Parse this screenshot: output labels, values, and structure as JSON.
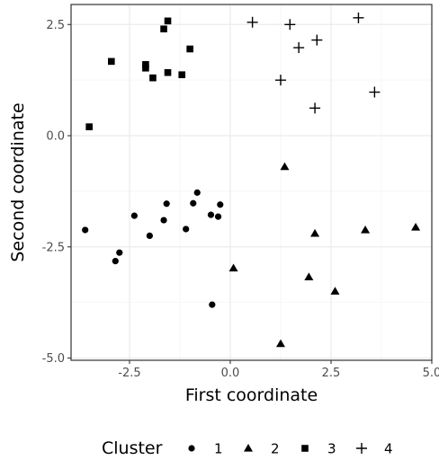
{
  "chart_data": {
    "type": "scatter",
    "xlabel": "First coordinate",
    "ylabel": "Second coordinate",
    "xlim": [
      -3.95,
      5.0
    ],
    "ylim": [
      -5.05,
      2.95
    ],
    "x_ticks": [
      -2.5,
      0.0,
      2.5,
      5.0
    ],
    "x_tick_labels": [
      "-2.5",
      "0.0",
      "2.5",
      "5.0"
    ],
    "y_ticks": [
      2.5,
      0.0,
      -2.5,
      -5.0
    ],
    "y_tick_labels": [
      "2.5",
      "0.0",
      "-2.5",
      "-5.0"
    ],
    "grid": true,
    "legend_position": "bottom",
    "legend_title": "Cluster",
    "series": [
      {
        "name": "1",
        "marker": "circle",
        "points": [
          [
            -3.6,
            -2.12
          ],
          [
            -2.85,
            -2.82
          ],
          [
            -2.75,
            -2.63
          ],
          [
            -2.38,
            -1.8
          ],
          [
            -2.0,
            -2.25
          ],
          [
            -1.65,
            -1.9
          ],
          [
            -1.58,
            -1.53
          ],
          [
            -1.1,
            -2.1
          ],
          [
            -0.92,
            -1.52
          ],
          [
            -0.82,
            -1.28
          ],
          [
            -0.48,
            -1.78
          ],
          [
            -0.3,
            -1.82
          ],
          [
            -0.25,
            -1.55
          ],
          [
            -0.45,
            -3.8
          ]
        ]
      },
      {
        "name": "2",
        "marker": "triangle",
        "points": [
          [
            1.35,
            -0.7
          ],
          [
            0.08,
            -2.98
          ],
          [
            2.1,
            -2.2
          ],
          [
            3.35,
            -2.12
          ],
          [
            4.6,
            -2.06
          ],
          [
            1.95,
            -3.18
          ],
          [
            2.6,
            -3.5
          ],
          [
            1.25,
            -4.68
          ]
        ]
      },
      {
        "name": "3",
        "marker": "square",
        "points": [
          [
            -1.55,
            2.58
          ],
          [
            -1.65,
            2.4
          ],
          [
            -1.0,
            1.95
          ],
          [
            -2.95,
            1.67
          ],
          [
            -2.1,
            1.6
          ],
          [
            -2.1,
            1.52
          ],
          [
            -1.92,
            1.3
          ],
          [
            -1.55,
            1.42
          ],
          [
            -1.2,
            1.37
          ],
          [
            -3.5,
            0.2
          ]
        ]
      },
      {
        "name": "4",
        "marker": "plus",
        "points": [
          [
            0.55,
            2.55
          ],
          [
            1.48,
            2.5
          ],
          [
            3.18,
            2.65
          ],
          [
            2.15,
            2.15
          ],
          [
            1.7,
            1.98
          ],
          [
            1.25,
            1.25
          ],
          [
            3.58,
            0.98
          ],
          [
            2.1,
            0.62
          ]
        ]
      }
    ],
    "colors": {
      "panel_background": "#ffffff",
      "grid_major": "#ebebeb",
      "grid_minor": "#f5f5f5",
      "panel_border": "#333333",
      "points": "#000000"
    }
  }
}
